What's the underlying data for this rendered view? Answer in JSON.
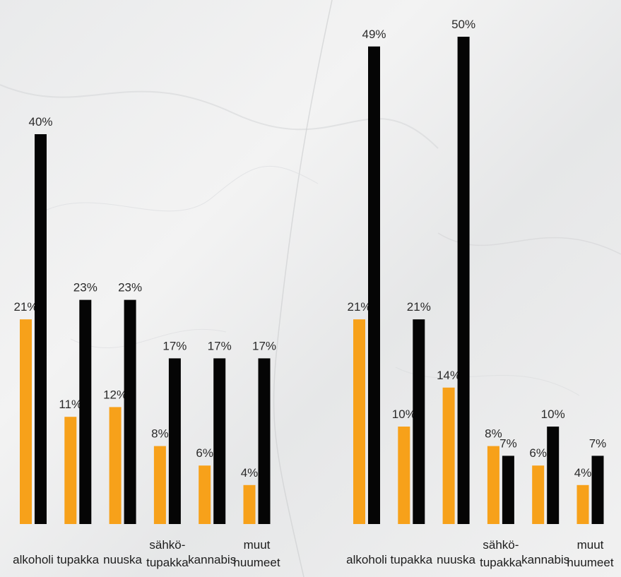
{
  "colors": {
    "series_a": "#f7a11a",
    "series_b": "#050505"
  },
  "chart_data": [
    {
      "type": "bar",
      "categories": [
        "alkoholi",
        "tupakka",
        "nuuska",
        "sähkö-\ntupakka",
        "kannabis",
        "muut\nhuumeet"
      ],
      "series": [
        {
          "values": [
            21,
            11,
            12,
            8,
            6,
            4
          ]
        },
        {
          "values": [
            40,
            23,
            23,
            17,
            17,
            17
          ]
        }
      ],
      "data_labels": [
        [
          "21%",
          "11%",
          "12%",
          "8%",
          "6%",
          "4%"
        ],
        [
          "40%",
          "23%",
          "23%",
          "17%",
          "17%",
          "17%"
        ]
      ],
      "ylim": [
        0,
        50
      ]
    },
    {
      "type": "bar",
      "categories": [
        "alkoholi",
        "tupakka",
        "nuuska",
        "sähkö-\ntupakka",
        "kannabis",
        "muut\nhuumeet"
      ],
      "series": [
        {
          "values": [
            21,
            10,
            14,
            8,
            6,
            4
          ]
        },
        {
          "values": [
            49,
            21,
            50,
            7,
            10,
            7
          ]
        }
      ],
      "data_labels": [
        [
          "21%",
          "10%",
          "14%",
          "8%",
          "6%",
          "4%"
        ],
        [
          "49%",
          "21%",
          "50%",
          "7%",
          "10%",
          "7%"
        ]
      ],
      "ylim": [
        0,
        50
      ]
    }
  ]
}
